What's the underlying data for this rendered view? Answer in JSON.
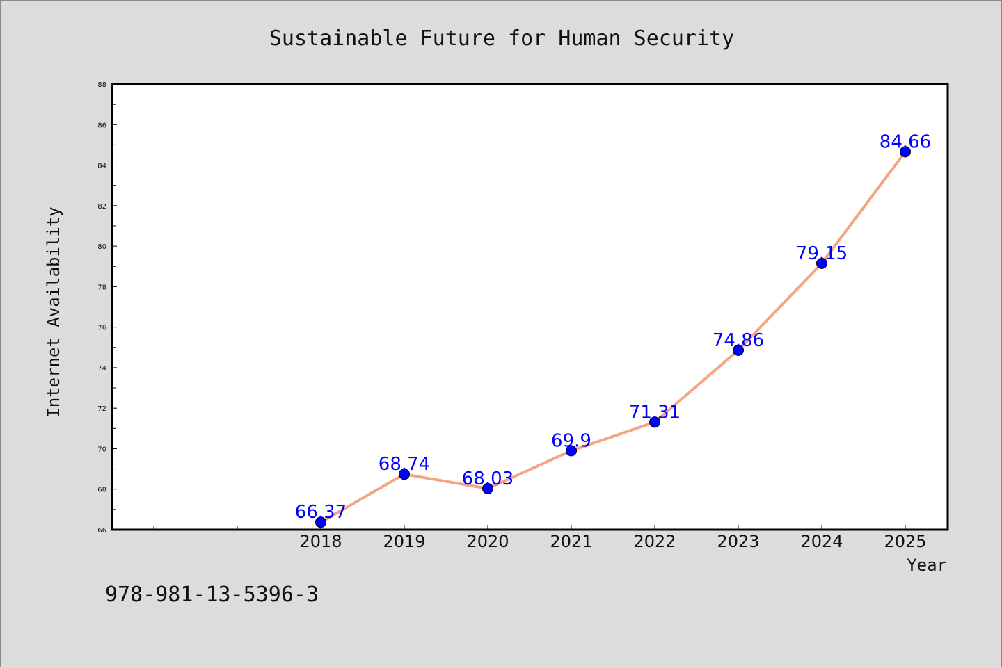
{
  "chart_data": {
    "type": "line",
    "title": "Sustainable Future for Human Security",
    "xlabel": "Year",
    "ylabel": "Internet Availability",
    "categories": [
      "2018",
      "2019",
      "2020",
      "2021",
      "2022",
      "2023",
      "2024",
      "2025"
    ],
    "values": [
      66.37,
      68.74,
      68.03,
      69.9,
      71.31,
      74.86,
      79.15,
      84.66
    ],
    "data_labels": [
      "66.37",
      "68.74",
      "68.03",
      "69.9",
      "71.31",
      "74.86",
      "79.15",
      "84.66"
    ],
    "ylim": [
      66,
      88
    ],
    "y_ticks": [
      "66",
      "68",
      "70",
      "72",
      "74",
      "76",
      "78",
      "80",
      "82",
      "84",
      "86",
      "88"
    ],
    "grid": false,
    "legend": "none",
    "line_color": "#f4a582",
    "marker_color": "#0000ff",
    "label_color": "#0000ff"
  },
  "footer": {
    "isbn": "978-981-13-5396-3"
  }
}
